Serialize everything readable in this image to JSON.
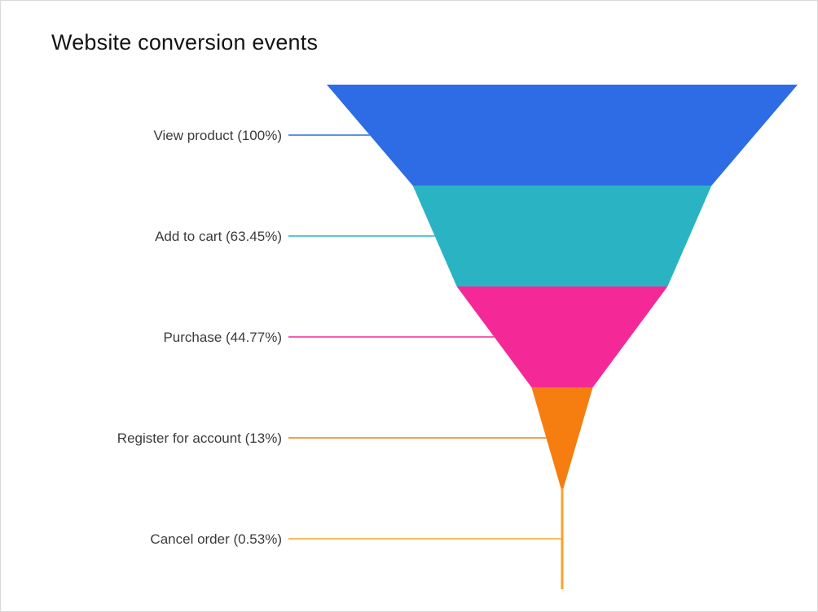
{
  "page": {
    "title": "Website conversion events"
  },
  "chart_data": {
    "type": "funnel",
    "title": "Website conversion events",
    "orientation": "inverted-triangle",
    "labels_position": "left",
    "background": "#ffffff",
    "stages": [
      {
        "label": "View product",
        "percent": 100,
        "display": "View product (100%)",
        "color": "#2d6ce4"
      },
      {
        "label": "Add to cart",
        "percent": 63.45,
        "display": "Add to cart (63.45%)",
        "color": "#2ab4c3"
      },
      {
        "label": "Purchase",
        "percent": 44.77,
        "display": "Purchase (44.77%)",
        "color": "#f42997"
      },
      {
        "label": "Register for account",
        "percent": 13,
        "display": "Register for account (13%)",
        "color": "#f67d0f"
      },
      {
        "label": "Cancel order",
        "percent": 0.53,
        "display": "Cancel order (0.53%)",
        "color": "#fba32a"
      }
    ]
  }
}
